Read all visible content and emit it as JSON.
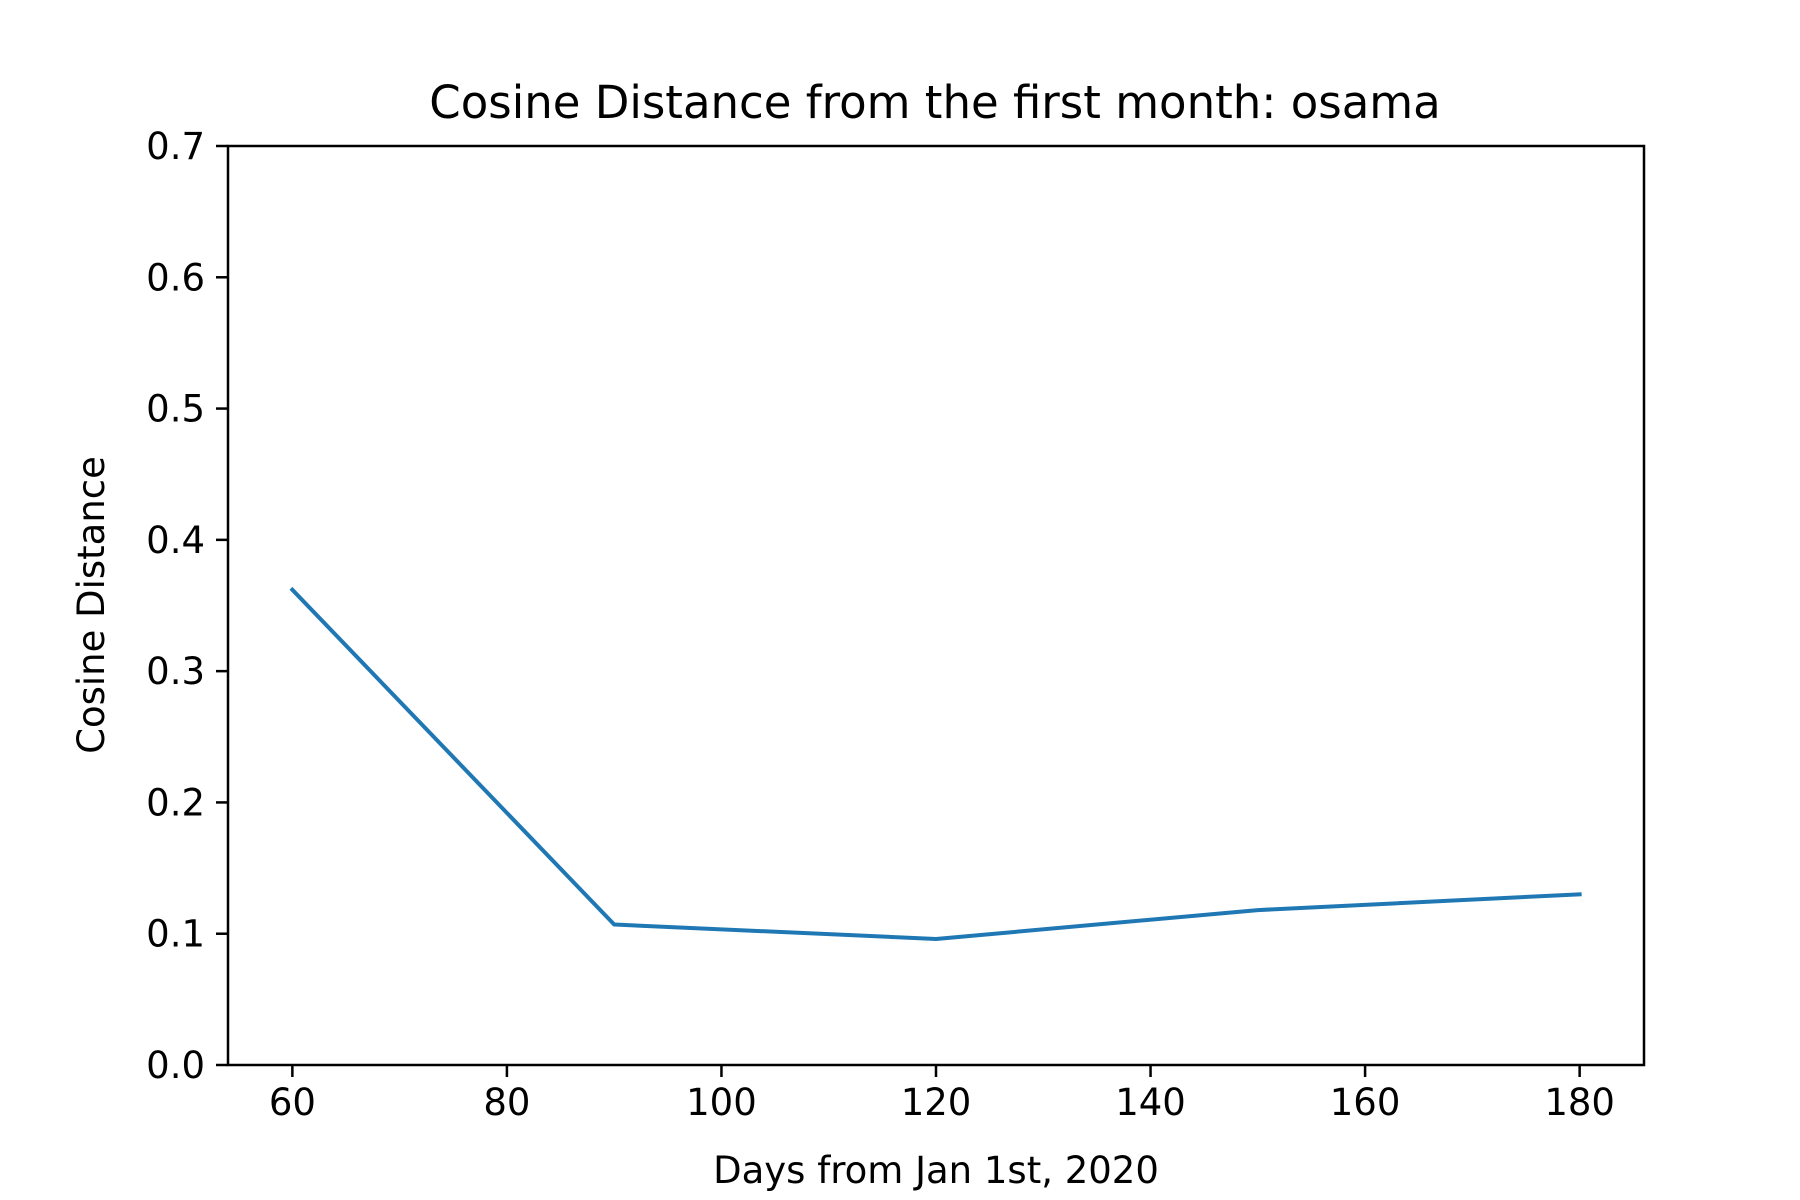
{
  "chart_data": {
    "type": "line",
    "title": "Cosine Distance from the first month: osama",
    "xlabel": "Days from Jan 1st, 2020",
    "ylabel": "Cosine Distance",
    "xlim": [
      54,
      186
    ],
    "ylim": [
      0.0,
      0.7
    ],
    "x_ticks": [
      60,
      80,
      100,
      120,
      140,
      160,
      180
    ],
    "y_ticks": [
      0.0,
      0.1,
      0.2,
      0.3,
      0.4,
      0.5,
      0.6,
      0.7
    ],
    "x_tick_labels": [
      "60",
      "80",
      "100",
      "120",
      "140",
      "160",
      "180"
    ],
    "y_tick_labels": [
      "0.0",
      "0.1",
      "0.2",
      "0.3",
      "0.4",
      "0.5",
      "0.6",
      "0.7"
    ],
    "grid": false,
    "series": [
      {
        "color": "#1f77b4",
        "x": [
          60,
          90,
          120,
          150,
          180
        ],
        "y": [
          0.362,
          0.107,
          0.096,
          0.118,
          0.13
        ]
      }
    ]
  }
}
